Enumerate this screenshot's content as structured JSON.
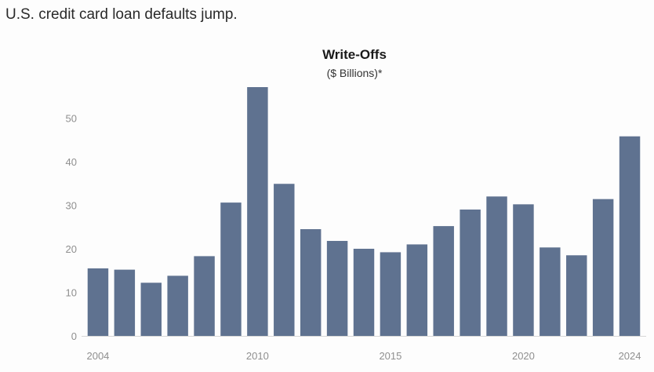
{
  "headline": "U.S. credit card loan defaults jump.",
  "colors": {
    "bar": "#5f7290",
    "tick_text": "#8f8f8f",
    "axis_line": "#d7d7d7"
  },
  "chart_data": {
    "type": "bar",
    "title": "Write-Offs",
    "subtitle": "($ Billions)*",
    "xlabel": "",
    "ylabel": "",
    "categories": [
      "2004",
      "2005",
      "2006",
      "2007",
      "2008",
      "2009",
      "2010",
      "2011",
      "2012",
      "2013",
      "2014",
      "2015",
      "2016",
      "2017",
      "2018",
      "2019",
      "2020",
      "2021",
      "2022",
      "2023",
      "2024"
    ],
    "values": [
      15.5,
      15.2,
      12.2,
      13.8,
      18.3,
      30.6,
      57.1,
      34.9,
      24.5,
      21.8,
      20.0,
      19.2,
      21.0,
      25.2,
      29.0,
      32.0,
      30.2,
      20.3,
      18.5,
      31.4,
      45.8
    ],
    "x_tick_labels": [
      "2004",
      "2010",
      "2015",
      "2020",
      "2024"
    ],
    "y_ticks": [
      0,
      10,
      20,
      30,
      40,
      50
    ],
    "ylim": [
      0,
      57.1
    ],
    "grid": false,
    "legend": "none"
  }
}
